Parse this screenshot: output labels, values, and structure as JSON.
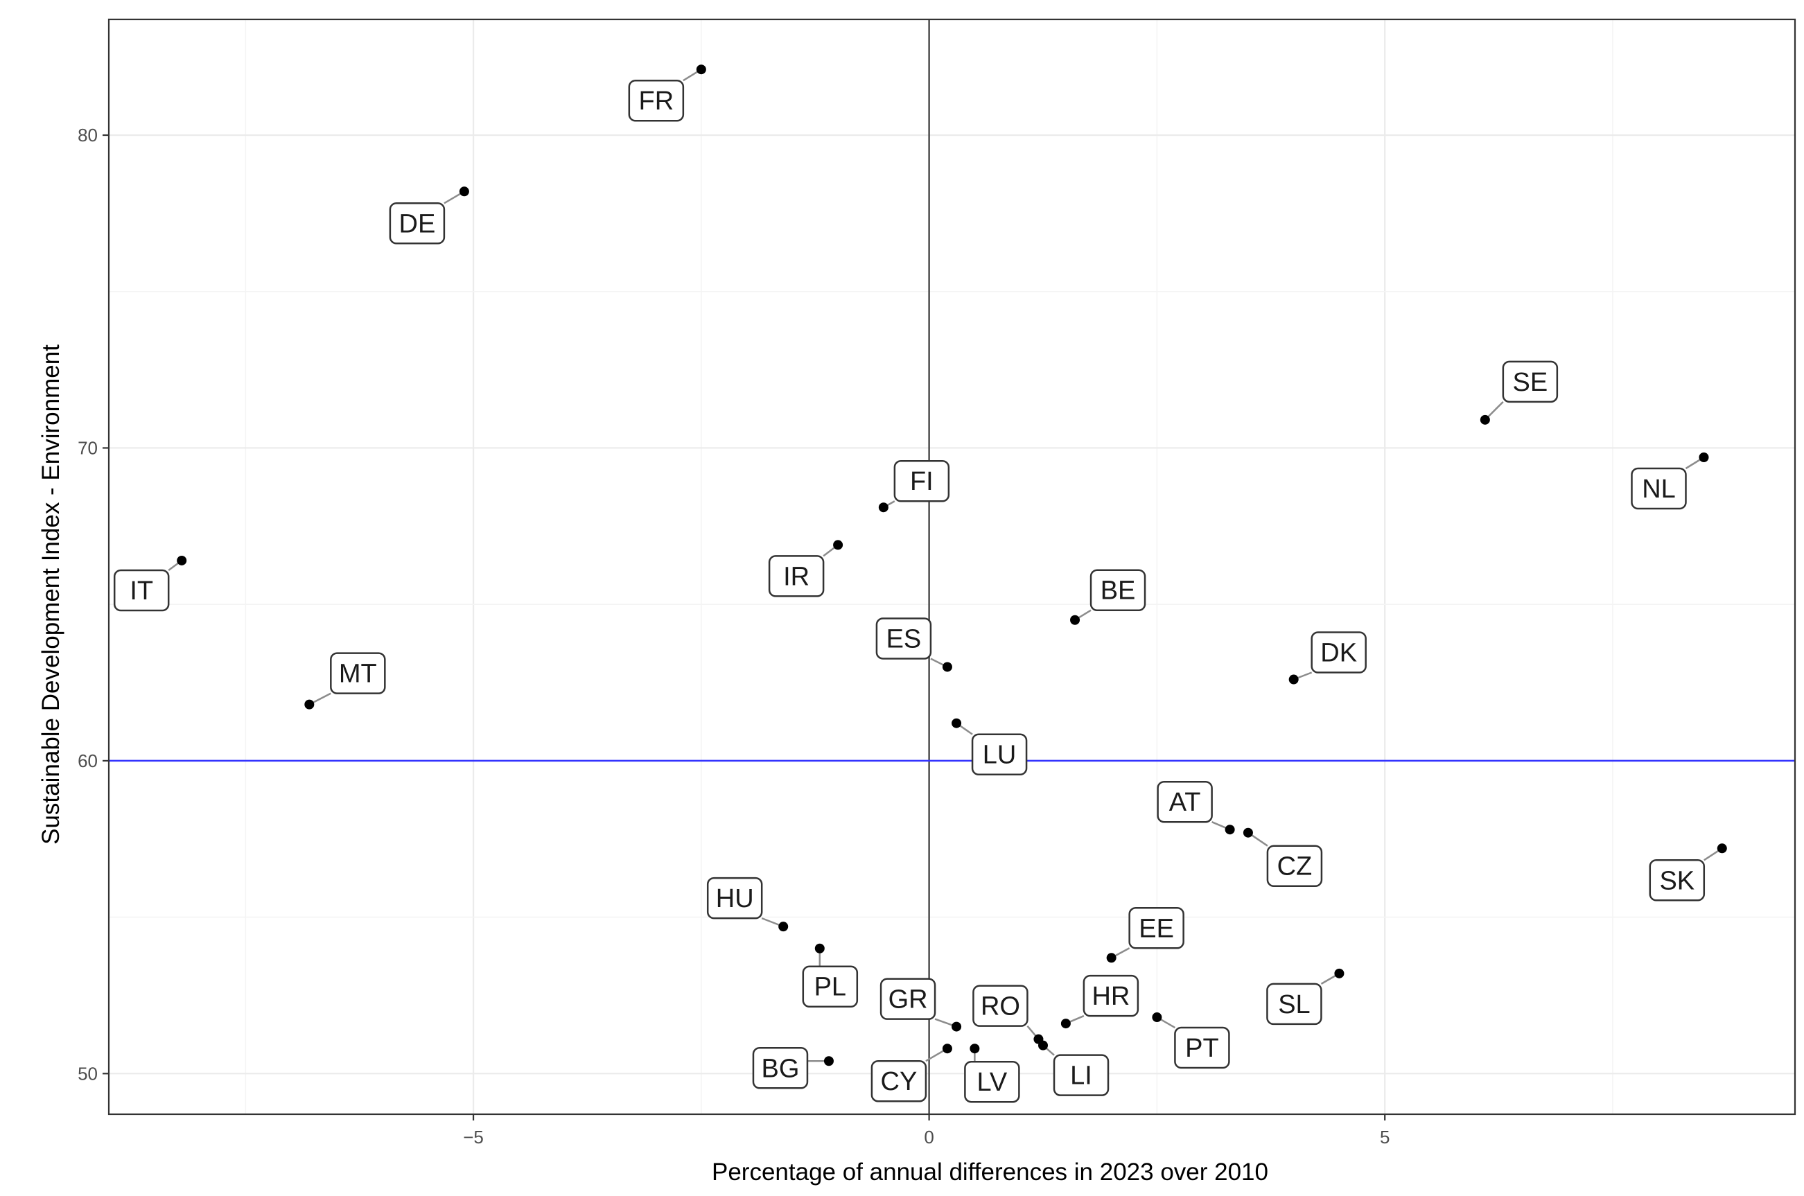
{
  "chart_data": {
    "type": "scatter",
    "title": "",
    "xlabel": "Percentage of annual differences in 2023 over 2010",
    "ylabel": "Sustainable Development Index - Environment",
    "xlim": [
      -9.0,
      9.5
    ],
    "ylim": [
      48.7,
      83.7
    ],
    "x_ticks": [
      -5,
      0,
      5
    ],
    "y_ticks": [
      50,
      60,
      70,
      80
    ],
    "x_tick_labels": [
      "−5",
      "0",
      "5"
    ],
    "y_tick_labels": [
      "50",
      "60",
      "70",
      "80"
    ],
    "grid": true,
    "reference_lines": {
      "vertical_x": 0,
      "horizontal_y": 60,
      "horizontal_color": "#3333ff",
      "vertical_color": "#4d4d4d"
    },
    "point_color": "#000000",
    "points": [
      {
        "label": "FR",
        "x": -2.5,
        "y": 82.1
      },
      {
        "label": "DE",
        "x": -5.1,
        "y": 78.2
      },
      {
        "label": "SE",
        "x": 6.1,
        "y": 70.9
      },
      {
        "label": "NL",
        "x": 8.5,
        "y": 69.7
      },
      {
        "label": "FI",
        "x": -0.5,
        "y": 68.1
      },
      {
        "label": "IR",
        "x": -1.0,
        "y": 66.9
      },
      {
        "label": "IT",
        "x": -8.2,
        "y": 66.4
      },
      {
        "label": "BE",
        "x": 1.6,
        "y": 64.5
      },
      {
        "label": "ES",
        "x": 0.2,
        "y": 63.0
      },
      {
        "label": "DK",
        "x": 4.0,
        "y": 62.6
      },
      {
        "label": "MT",
        "x": -6.8,
        "y": 61.8
      },
      {
        "label": "LU",
        "x": 0.3,
        "y": 61.2
      },
      {
        "label": "AT",
        "x": 3.3,
        "y": 57.8
      },
      {
        "label": "CZ",
        "x": 3.5,
        "y": 57.7
      },
      {
        "label": "SK",
        "x": 8.7,
        "y": 57.2
      },
      {
        "label": "HU",
        "x": -1.6,
        "y": 54.7
      },
      {
        "label": "PL",
        "x": -1.2,
        "y": 54.0
      },
      {
        "label": "EE",
        "x": 2.0,
        "y": 53.7
      },
      {
        "label": "SL",
        "x": 4.5,
        "y": 53.2
      },
      {
        "label": "PT",
        "x": 2.5,
        "y": 51.8
      },
      {
        "label": "HR",
        "x": 1.5,
        "y": 51.6
      },
      {
        "label": "GR",
        "x": 0.3,
        "y": 51.5
      },
      {
        "label": "RO",
        "x": 1.2,
        "y": 51.1
      },
      {
        "label": "LI",
        "x": 1.25,
        "y": 50.9
      },
      {
        "label": "CY",
        "x": 0.2,
        "y": 50.8
      },
      {
        "label": "LV",
        "x": 0.5,
        "y": 50.8
      },
      {
        "label": "BG",
        "x": -1.1,
        "y": 50.4
      }
    ]
  }
}
